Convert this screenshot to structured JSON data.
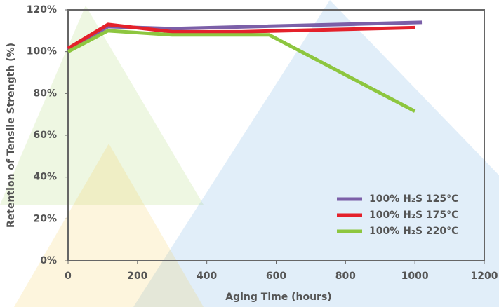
{
  "chart_data": {
    "type": "line",
    "x_label": "Aging Time (hours)",
    "y_label": "Retention of Tensile Strength (%)",
    "xlim": [
      0,
      1200
    ],
    "xticks": [
      0,
      200,
      400,
      600,
      800,
      1000,
      1200
    ],
    "ylim": [
      0,
      120
    ],
    "yticks": [
      {
        "value": 0,
        "label": "0%"
      },
      {
        "value": 20,
        "label": "20%"
      },
      {
        "value": 40,
        "label": "40%"
      },
      {
        "value": 60,
        "label": "60%"
      },
      {
        "value": 80,
        "label": "80%"
      },
      {
        "value": 100,
        "label": "100%"
      },
      {
        "value": 120,
        "label": "120%"
      }
    ],
    "legend": "lower right",
    "series": [
      {
        "name": "100% H₂S 125°C",
        "color": "#7b5fa8",
        "x": [
          0,
          115,
          300,
          1020
        ],
        "values": [
          101,
          112,
          111,
          114
        ]
      },
      {
        "name": "100% H₂S 175°C",
        "color": "#e4212b",
        "x": [
          0,
          115,
          300,
          500,
          1000
        ],
        "values": [
          101.5,
          113,
          109.5,
          109.5,
          111.5
        ]
      },
      {
        "name": "100% H₂S 220°C",
        "color": "#8dc63f",
        "x": [
          0,
          115,
          300,
          580,
          1000
        ],
        "values": [
          100,
          110,
          108,
          108,
          71.5
        ]
      }
    ]
  }
}
